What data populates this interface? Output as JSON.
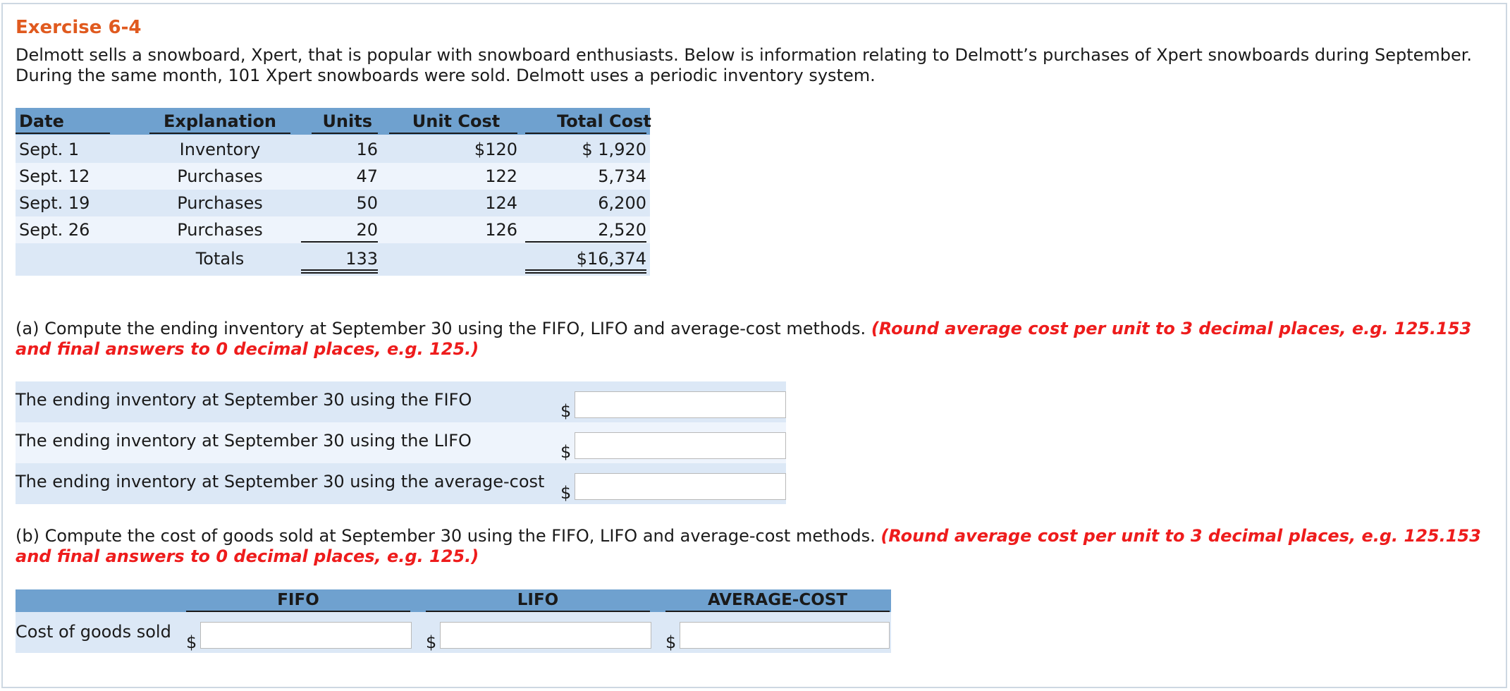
{
  "exercise": {
    "title": "Exercise 6-4",
    "intro": "Delmott sells a snowboard, Xpert, that is popular with snowboard enthusiasts. Below is information relating to Delmott’s purchases of Xpert snowboards during September. During the same month, 101 Xpert snowboards were sold. Delmott uses a periodic inventory system."
  },
  "purchases": {
    "headers": {
      "date": "Date",
      "explanation": "Explanation",
      "units": "Units",
      "unit_cost": "Unit Cost",
      "total_cost": "Total Cost"
    },
    "rows": [
      {
        "date": "Sept. 1",
        "explanation": "Inventory",
        "units": "16",
        "unit_cost": "$120",
        "total_cost": "$ 1,920"
      },
      {
        "date": "Sept. 12",
        "explanation": "Purchases",
        "units": "47",
        "unit_cost": "122",
        "total_cost": "5,734"
      },
      {
        "date": "Sept. 19",
        "explanation": "Purchases",
        "units": "50",
        "unit_cost": "124",
        "total_cost": "6,200"
      },
      {
        "date": "Sept. 26",
        "explanation": "Purchases",
        "units": "20",
        "unit_cost": "126",
        "total_cost": "2,520"
      }
    ],
    "totals": {
      "label": "Totals",
      "units": "133",
      "total_cost": "$16,374"
    }
  },
  "part_a": {
    "question": "(a) Compute the ending inventory at September 30 using the FIFO, LIFO and average-cost methods.",
    "hint": "(Round average cost per unit to 3 decimal places, e.g. 125.153 and final answers to 0 decimal places, e.g. 125.)",
    "rows": [
      {
        "label": "The ending inventory at September 30 using the FIFO",
        "currency": "$",
        "value": ""
      },
      {
        "label": "The ending inventory at September 30 using the LIFO",
        "currency": "$",
        "value": ""
      },
      {
        "label": "The ending inventory at September 30 using the average-cost",
        "currency": "$",
        "value": ""
      }
    ]
  },
  "part_b": {
    "question": "(b) Compute the cost of goods sold at September 30 using the FIFO, LIFO and average-cost methods.",
    "hint": "(Round average cost per unit to 3 decimal places, e.g. 125.153 and final answers to 0 decimal places, e.g. 125.)",
    "headers": [
      "FIFO",
      "LIFO",
      "AVERAGE-COST"
    ],
    "row_label": "Cost of goods sold",
    "currency": "$",
    "values": [
      "",
      "",
      ""
    ]
  },
  "colors": {
    "title": "#e05a1f",
    "hint": "#ee1c1c",
    "table_header": "#6fa1cf",
    "row_light": "#eef4fc",
    "row_dark": "#dce8f6"
  }
}
